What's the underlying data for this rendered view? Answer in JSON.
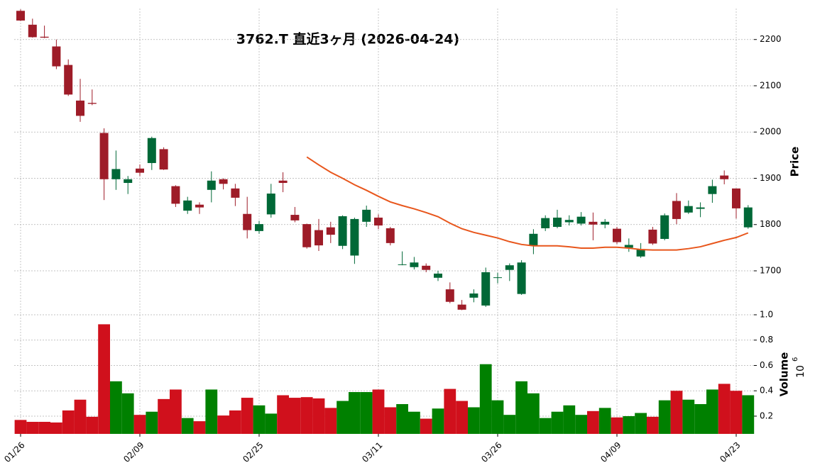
{
  "chart_data": {
    "type": "candlestick",
    "title": "3762.T 直近3ヶ月 (2026-04-24)",
    "categories": [
      "01/26",
      null,
      null,
      null,
      null,
      null,
      null,
      null,
      null,
      null,
      "02/09",
      null,
      null,
      null,
      null,
      null,
      null,
      null,
      null,
      null,
      "02/25",
      null,
      null,
      null,
      null,
      null,
      null,
      null,
      null,
      null,
      "03/11",
      null,
      null,
      null,
      null,
      null,
      null,
      null,
      null,
      null,
      "03/26",
      null,
      null,
      null,
      null,
      null,
      null,
      null,
      null,
      null,
      "04/09",
      null,
      null,
      null,
      null,
      null,
      null,
      null,
      null,
      null,
      "04/23",
      null
    ],
    "open": [
      2262,
      2232,
      2206,
      2185,
      2145,
      2068,
      2063,
      1998,
      1898,
      1890,
      1921,
      1933,
      1963,
      1883,
      1830,
      1843,
      1875,
      1898,
      1878,
      1823,
      1786,
      1822,
      1895,
      1821,
      1801,
      1788,
      1794,
      1754,
      1733,
      1806,
      1815,
      1792,
      1713,
      1708,
      1711,
      1685,
      1660,
      1627,
      1642,
      1625,
      1685,
      1702,
      1650,
      1755,
      1792,
      1795,
      1805,
      1802,
      1806,
      1800,
      1791,
      1750,
      1731,
      1789,
      1769,
      1851,
      1826,
      1834,
      1866,
      1906,
      1878,
      1794
    ],
    "high": [
      2265,
      2245,
      2230,
      2200,
      2157,
      2115,
      2092,
      2008,
      1960,
      1905,
      1930,
      1990,
      1967,
      1885,
      1860,
      1848,
      1915,
      1900,
      1888,
      1860,
      1808,
      1888,
      1913,
      1838,
      1802,
      1812,
      1806,
      1820,
      1815,
      1841,
      1822,
      1795,
      1742,
      1730,
      1716,
      1700,
      1675,
      1637,
      1660,
      1707,
      1696,
      1716,
      1723,
      1790,
      1820,
      1832,
      1820,
      1827,
      1826,
      1812,
      1795,
      1770,
      1760,
      1795,
      1824,
      1868,
      1852,
      1848,
      1897,
      1917,
      1878,
      1842
    ],
    "low": [
      2240,
      2204,
      2203,
      2136,
      2078,
      2022,
      2058,
      1853,
      1875,
      1866,
      1905,
      1918,
      1918,
      1838,
      1823,
      1823,
      1848,
      1876,
      1840,
      1770,
      1780,
      1815,
      1870,
      1805,
      1748,
      1743,
      1760,
      1747,
      1715,
      1795,
      1790,
      1755,
      1712,
      1703,
      1697,
      1678,
      1630,
      1615,
      1632,
      1622,
      1673,
      1678,
      1648,
      1736,
      1786,
      1792,
      1798,
      1798,
      1766,
      1792,
      1758,
      1741,
      1728,
      1756,
      1766,
      1801,
      1823,
      1816,
      1847,
      1887,
      1813,
      1791
    ],
    "close": [
      2241,
      2205,
      2204,
      2142,
      2081,
      2035,
      2061,
      1898,
      1920,
      1898,
      1912,
      1987,
      1919,
      1845,
      1852,
      1837,
      1895,
      1888,
      1858,
      1788,
      1801,
      1867,
      1890,
      1809,
      1751,
      1755,
      1778,
      1818,
      1812,
      1832,
      1798,
      1760,
      1714,
      1718,
      1702,
      1694,
      1633,
      1616,
      1651,
      1697,
      1686,
      1712,
      1718,
      1780,
      1814,
      1815,
      1810,
      1817,
      1800,
      1806,
      1762,
      1756,
      1747,
      1759,
      1820,
      1812,
      1840,
      1837,
      1883,
      1898,
      1835,
      1837
    ],
    "up_color": "#006837",
    "down_color": "#9e1c28",
    "ylabel": "Price",
    "ylim": [
      1605,
      2267
    ],
    "yticks": [
      1700,
      1800,
      1900,
      2000,
      2100,
      2200
    ],
    "grid": true,
    "lines": [
      {
        "color": "#e8561c",
        "values": [
          null,
          null,
          null,
          null,
          null,
          null,
          null,
          null,
          null,
          null,
          null,
          null,
          null,
          null,
          null,
          null,
          null,
          null,
          null,
          null,
          null,
          null,
          null,
          null,
          1946,
          1929,
          1913,
          1900,
          1886,
          1874,
          1861,
          1849,
          1841,
          1834,
          1826,
          1817,
          1803,
          1791,
          1783,
          1777,
          1771,
          1763,
          1757,
          1754,
          1754,
          1754,
          1752,
          1749,
          1749,
          1751,
          1751,
          1749,
          1746,
          1745,
          1745,
          1745,
          1748,
          1752,
          1759,
          1766,
          1772,
          1782
        ]
      }
    ],
    "volume": {
      "ylabel": "Volume",
      "offset_base": "10",
      "offset_power": "6",
      "values": [
        0.17,
        0.155,
        0.155,
        0.15,
        0.245,
        0.33,
        0.195,
        0.925,
        0.475,
        0.38,
        0.21,
        0.235,
        0.335,
        0.41,
        0.185,
        0.16,
        0.41,
        0.205,
        0.245,
        0.345,
        0.285,
        0.22,
        0.365,
        0.345,
        0.35,
        0.34,
        0.265,
        0.32,
        0.39,
        0.39,
        0.41,
        0.27,
        0.295,
        0.235,
        0.18,
        0.26,
        0.415,
        0.32,
        0.27,
        0.61,
        0.325,
        0.21,
        0.475,
        0.38,
        0.185,
        0.235,
        0.285,
        0.21,
        0.24,
        0.265,
        0.19,
        0.2,
        0.225,
        0.195,
        0.325,
        0.4,
        0.33,
        0.295,
        0.41,
        0.455,
        0.4,
        0.365
      ],
      "up_color": "#008000",
      "down_color": "#d0101c",
      "ylim": [
        0.06,
        1.0
      ],
      "yticks": [
        0.2,
        0.4,
        0.6,
        0.8,
        {
          "value": 1,
          "label": "1.0"
        }
      ]
    }
  }
}
